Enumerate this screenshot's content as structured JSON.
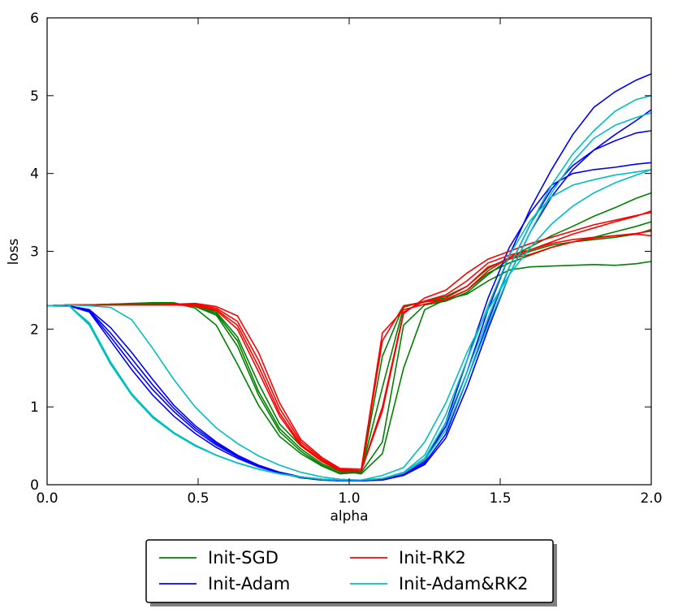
{
  "chart_data": {
    "type": "line",
    "xlabel": "alpha",
    "ylabel": "loss",
    "xlim": [
      0.0,
      2.0
    ],
    "ylim": [
      0,
      6
    ],
    "xticks": [
      "0.0",
      "0.5",
      "1.0",
      "1.5",
      "2.0"
    ],
    "yticks": [
      "0",
      "1",
      "2",
      "3",
      "4",
      "5",
      "6"
    ],
    "grid": false,
    "legend_position": "bottom-center, below plot",
    "x": [
      0.0,
      0.07,
      0.14,
      0.21,
      0.28,
      0.35,
      0.42,
      0.49,
      0.56,
      0.63,
      0.7,
      0.77,
      0.84,
      0.91,
      0.97,
      1.04,
      1.11,
      1.18,
      1.25,
      1.32,
      1.39,
      1.46,
      1.53,
      1.6,
      1.67,
      1.74,
      1.81,
      1.88,
      1.95,
      2.0
    ],
    "groups": [
      {
        "name": "Init-SGD",
        "color": "#008000",
        "runs": [
          [
            2.3,
            2.31,
            2.31,
            2.32,
            2.33,
            2.34,
            2.34,
            2.27,
            2.05,
            1.55,
            1.02,
            0.62,
            0.4,
            0.24,
            0.14,
            0.16,
            1.65,
            2.3,
            2.35,
            2.38,
            2.45,
            2.62,
            2.76,
            2.8,
            2.81,
            2.82,
            2.83,
            2.82,
            2.84,
            2.87
          ],
          [
            2.3,
            2.31,
            2.31,
            2.32,
            2.32,
            2.33,
            2.33,
            2.29,
            2.18,
            1.78,
            1.15,
            0.68,
            0.43,
            0.25,
            0.15,
            0.18,
            1.25,
            2.28,
            2.36,
            2.42,
            2.55,
            2.78,
            2.92,
            3.06,
            3.2,
            3.32,
            3.45,
            3.56,
            3.68,
            3.75
          ],
          [
            2.3,
            2.31,
            2.31,
            2.32,
            2.32,
            2.32,
            2.33,
            2.3,
            2.2,
            1.85,
            1.2,
            0.72,
            0.46,
            0.27,
            0.17,
            0.16,
            0.55,
            2.05,
            2.31,
            2.36,
            2.47,
            2.7,
            2.9,
            3.0,
            3.08,
            3.12,
            3.15,
            3.18,
            3.22,
            3.28
          ],
          [
            2.3,
            2.31,
            2.31,
            2.31,
            2.32,
            2.32,
            2.32,
            2.31,
            2.22,
            1.9,
            1.3,
            0.78,
            0.5,
            0.3,
            0.18,
            0.14,
            0.4,
            1.5,
            2.25,
            2.38,
            2.5,
            2.72,
            2.85,
            2.95,
            3.05,
            3.12,
            3.18,
            3.25,
            3.32,
            3.38
          ]
        ]
      },
      {
        "name": "Init-Adam",
        "color": "#0000ff",
        "runs": [
          [
            2.3,
            2.3,
            2.25,
            2.02,
            1.7,
            1.35,
            1.02,
            0.76,
            0.55,
            0.38,
            0.25,
            0.16,
            0.1,
            0.07,
            0.05,
            0.05,
            0.07,
            0.13,
            0.3,
            0.8,
            1.6,
            2.4,
            3.05,
            3.5,
            3.85,
            4.0,
            4.05,
            4.08,
            4.12,
            4.14
          ],
          [
            2.3,
            2.3,
            2.24,
            1.95,
            1.62,
            1.28,
            0.98,
            0.73,
            0.53,
            0.37,
            0.25,
            0.16,
            0.1,
            0.07,
            0.05,
            0.05,
            0.07,
            0.13,
            0.32,
            0.75,
            1.45,
            2.25,
            2.95,
            3.55,
            4.05,
            4.5,
            4.85,
            5.05,
            5.2,
            5.28
          ],
          [
            2.3,
            2.3,
            2.23,
            1.9,
            1.55,
            1.22,
            0.94,
            0.7,
            0.51,
            0.36,
            0.24,
            0.15,
            0.1,
            0.07,
            0.05,
            0.05,
            0.07,
            0.12,
            0.28,
            0.65,
            1.35,
            2.1,
            2.8,
            3.35,
            3.8,
            4.1,
            4.3,
            4.42,
            4.52,
            4.55
          ],
          [
            2.3,
            2.3,
            2.22,
            1.85,
            1.48,
            1.15,
            0.88,
            0.66,
            0.48,
            0.34,
            0.23,
            0.15,
            0.09,
            0.06,
            0.05,
            0.05,
            0.06,
            0.12,
            0.26,
            0.6,
            1.25,
            2.0,
            2.7,
            3.25,
            3.7,
            4.05,
            4.3,
            4.5,
            4.68,
            4.82
          ]
        ]
      },
      {
        "name": "Init-RK2",
        "color": "#ff0000",
        "runs": [
          [
            2.3,
            2.31,
            2.31,
            2.31,
            2.31,
            2.31,
            2.32,
            2.33,
            2.29,
            2.17,
            1.7,
            1.05,
            0.58,
            0.35,
            0.21,
            0.2,
            1.95,
            2.25,
            2.32,
            2.38,
            2.5,
            2.75,
            2.92,
            3.02,
            3.1,
            3.15,
            3.18,
            3.2,
            3.23,
            3.26
          ],
          [
            2.3,
            2.31,
            2.31,
            2.31,
            2.31,
            2.31,
            2.31,
            2.32,
            2.27,
            2.1,
            1.6,
            0.98,
            0.55,
            0.33,
            0.2,
            0.18,
            1.85,
            2.3,
            2.35,
            2.4,
            2.55,
            2.8,
            2.9,
            2.96,
            3.05,
            3.12,
            3.17,
            3.2,
            3.22,
            3.2
          ],
          [
            2.3,
            2.31,
            2.31,
            2.31,
            2.31,
            2.31,
            2.31,
            2.31,
            2.25,
            2.05,
            1.52,
            0.92,
            0.52,
            0.31,
            0.19,
            0.18,
            1.0,
            2.22,
            2.36,
            2.44,
            2.62,
            2.85,
            2.95,
            3.02,
            3.12,
            3.22,
            3.3,
            3.38,
            3.45,
            3.52
          ],
          [
            2.3,
            2.31,
            2.31,
            2.31,
            2.31,
            2.31,
            2.31,
            2.3,
            2.24,
            2.0,
            1.45,
            0.88,
            0.5,
            0.3,
            0.18,
            0.18,
            0.95,
            2.2,
            2.4,
            2.5,
            2.72,
            2.9,
            3.0,
            3.1,
            3.18,
            3.26,
            3.34,
            3.4,
            3.46,
            3.5
          ]
        ]
      },
      {
        "name": "Init-Adam&RK2",
        "color": "#00bfbf",
        "runs": [
          [
            2.3,
            2.31,
            2.08,
            1.58,
            1.17,
            0.88,
            0.67,
            0.51,
            0.38,
            0.28,
            0.2,
            0.14,
            0.1,
            0.07,
            0.06,
            0.06,
            0.08,
            0.16,
            0.38,
            0.9,
            1.6,
            2.3,
            2.95,
            3.4,
            3.7,
            3.85,
            3.92,
            3.98,
            4.02,
            4.05
          ],
          [
            2.3,
            2.31,
            2.05,
            1.55,
            1.15,
            0.86,
            0.66,
            0.5,
            0.38,
            0.28,
            0.2,
            0.14,
            0.1,
            0.07,
            0.06,
            0.06,
            0.08,
            0.15,
            0.34,
            0.8,
            1.45,
            2.15,
            2.8,
            3.35,
            3.85,
            4.25,
            4.55,
            4.8,
            4.95,
            5.0
          ],
          [
            2.3,
            2.31,
            2.06,
            1.56,
            1.16,
            0.87,
            0.66,
            0.5,
            0.38,
            0.28,
            0.2,
            0.14,
            0.1,
            0.07,
            0.06,
            0.06,
            0.08,
            0.15,
            0.32,
            0.7,
            1.35,
            2.05,
            2.7,
            3.25,
            3.75,
            4.15,
            4.45,
            4.62,
            4.72,
            4.78
          ],
          [
            2.3,
            2.31,
            2.3,
            2.28,
            2.12,
            1.75,
            1.35,
            1.0,
            0.73,
            0.53,
            0.37,
            0.25,
            0.16,
            0.1,
            0.07,
            0.06,
            0.12,
            0.22,
            0.55,
            1.05,
            1.7,
            2.25,
            2.7,
            3.05,
            3.35,
            3.58,
            3.75,
            3.88,
            3.98,
            4.05
          ]
        ]
      }
    ]
  }
}
